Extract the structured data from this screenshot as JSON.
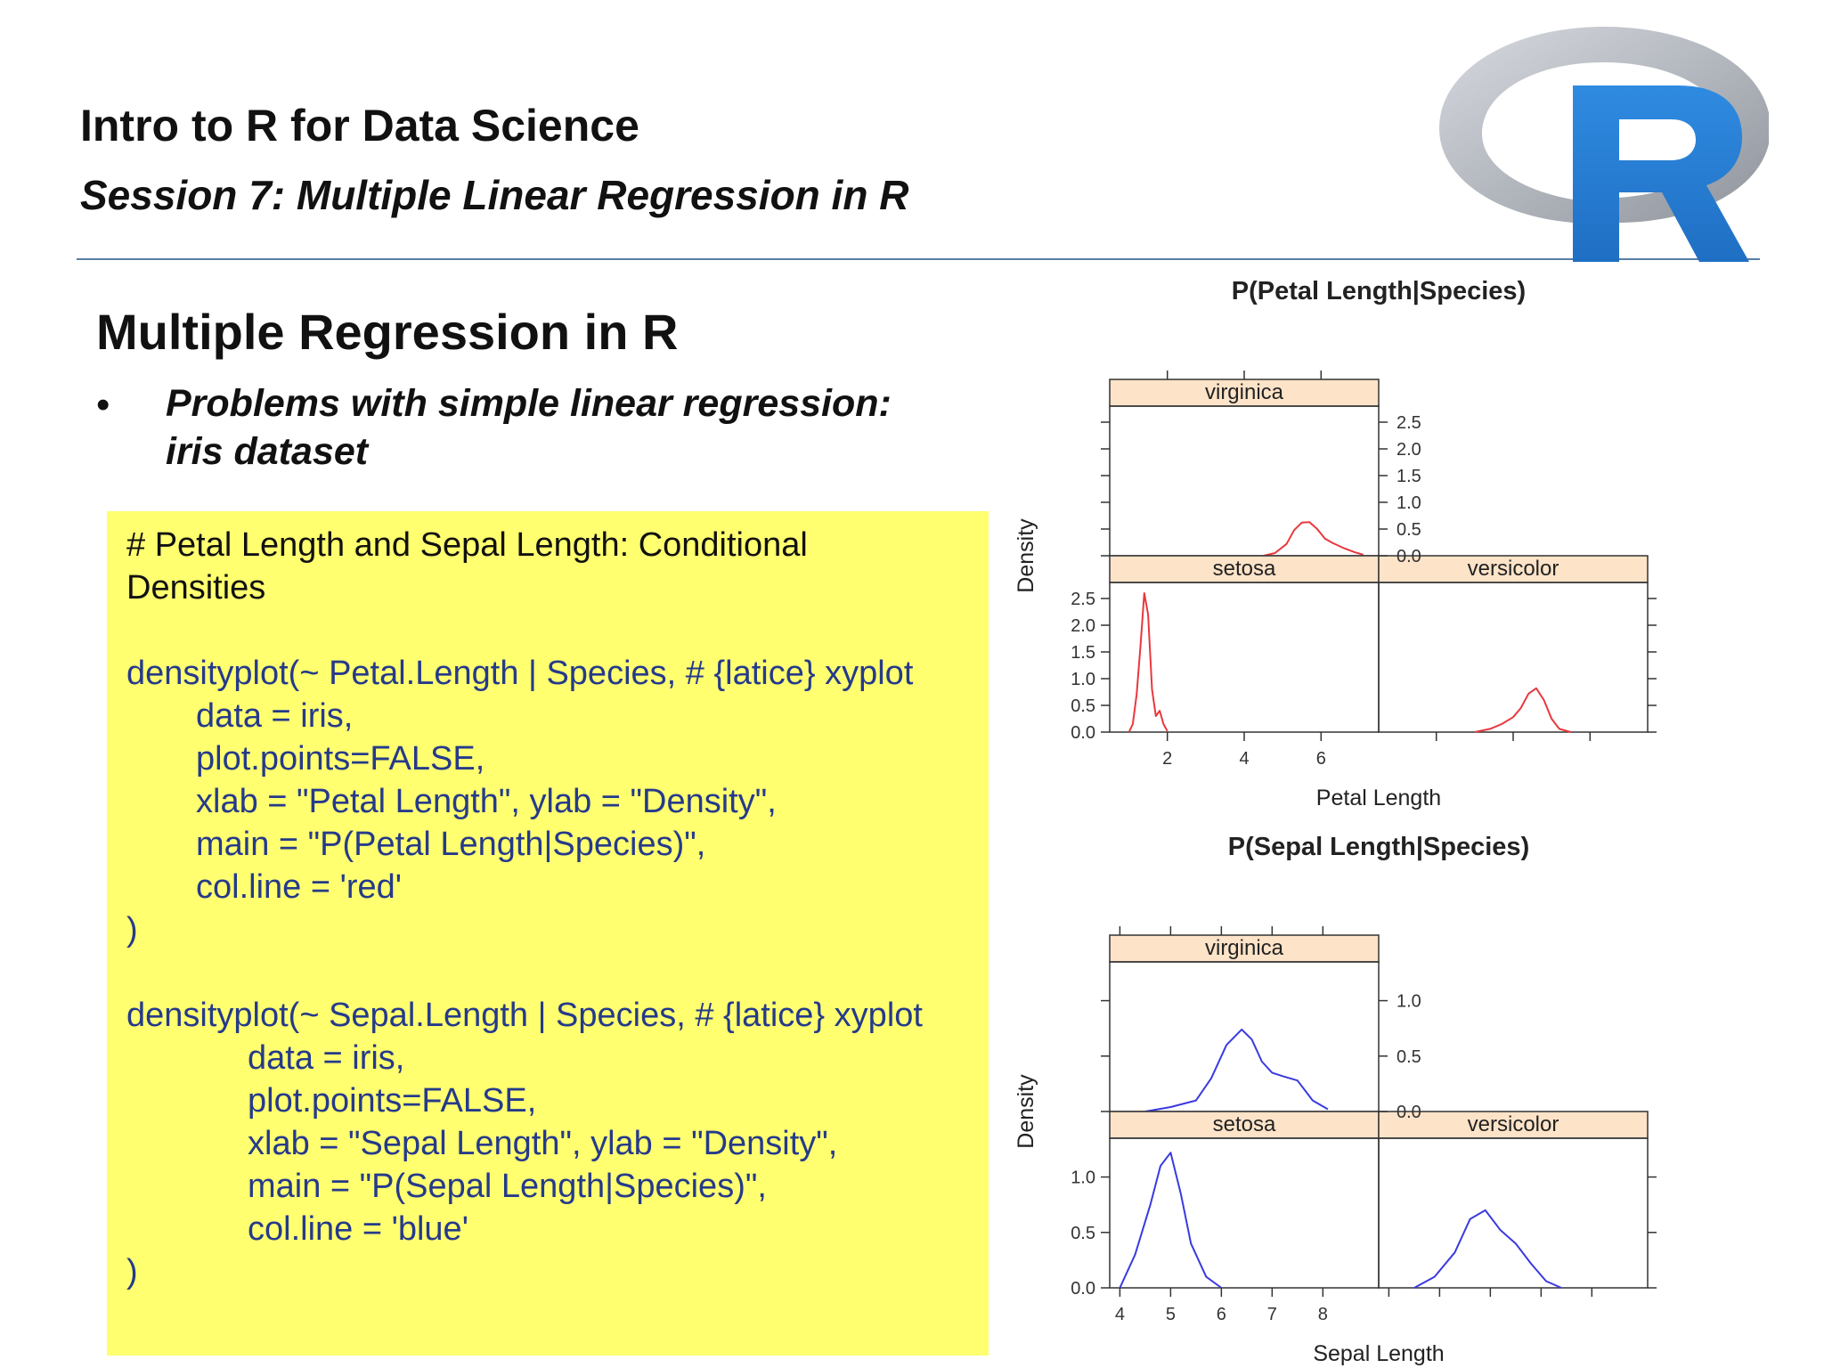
{
  "header": {
    "course_title": "Intro to R for Data Science",
    "session_title": "Session 7: Multiple Linear Regression in R"
  },
  "logo": {
    "name": "r-logo",
    "letter": "R",
    "colors": {
      "ring": "#b4b8c0",
      "letter": "#2a7fd6"
    }
  },
  "slide": {
    "heading": "Multiple Regression in R",
    "bullet_marker": "•",
    "bullet_text_line1": "Problems with simple linear regression:",
    "bullet_text_line2": "iris dataset"
  },
  "code_box": {
    "background": "#ffff70",
    "lines": [
      "# Petal Length and Sepal Length: Conditional",
      "Densities",
      "",
      "densityplot(~ Petal.Length | Species, # {latice} xyplot",
      "data = iris,",
      "plot.points=FALSE,",
      "xlab = \"Petal Length\", ylab = \"Density\",",
      "main = \"P(Petal Length|Species)\",",
      "col.line = 'red'",
      ")",
      "",
      "densityplot(~ Sepal.Length | Species, # {latice} xyplot",
      "data = iris,",
      "plot.points=FALSE,",
      "xlab = \"Sepal Length\", ylab = \"Density\",",
      "main = \"P(Sepal Length|Species)\",",
      "col.line = 'blue'",
      ")"
    ]
  },
  "chart_data": [
    {
      "type": "line",
      "title": "P(Petal Length|Species)",
      "xlabel": "Petal Length",
      "ylabel": "Density",
      "xlim": [
        0.5,
        7.5
      ],
      "ylim": [
        0,
        2.8
      ],
      "x_ticks": [
        2,
        4,
        6
      ],
      "y_ticks": [
        0.0,
        0.5,
        1.0,
        1.5,
        2.0,
        2.5
      ],
      "y_tick_labels": [
        "0.0",
        "0.5",
        "1.0",
        "1.5",
        "2.0",
        "2.5"
      ],
      "line_color": "#e8383d",
      "strip_color": "#fde3c8",
      "panels": [
        {
          "name": "virginica",
          "x": [
            4.5,
            4.8,
            5.1,
            5.3,
            5.5,
            5.7,
            5.9,
            6.1,
            6.3,
            6.6,
            6.9,
            7.1
          ],
          "y": [
            0.0,
            0.05,
            0.22,
            0.48,
            0.62,
            0.63,
            0.5,
            0.32,
            0.24,
            0.14,
            0.06,
            0.02
          ]
        },
        {
          "name": "setosa",
          "x": [
            1.0,
            1.1,
            1.2,
            1.3,
            1.4,
            1.5,
            1.6,
            1.7,
            1.8,
            1.9,
            2.0
          ],
          "y": [
            0.0,
            0.15,
            0.7,
            1.6,
            2.6,
            2.2,
            0.8,
            0.3,
            0.4,
            0.15,
            0.02
          ]
        },
        {
          "name": "versicolor",
          "x": [
            3.0,
            3.4,
            3.7,
            4.0,
            4.2,
            4.4,
            4.6,
            4.8,
            5.0,
            5.2,
            5.5
          ],
          "y": [
            0.0,
            0.06,
            0.15,
            0.28,
            0.45,
            0.72,
            0.82,
            0.6,
            0.25,
            0.06,
            0.0
          ]
        }
      ]
    },
    {
      "type": "line",
      "title": "P(Sepal Length|Species)",
      "xlabel": "Sepal Length",
      "ylabel": "Density",
      "xlim": [
        3.8,
        9.1
      ],
      "ylim": [
        0,
        1.35
      ],
      "x_ticks": [
        4,
        5,
        6,
        7,
        8
      ],
      "y_ticks": [
        0.0,
        0.5,
        1.0
      ],
      "y_tick_labels": [
        "0.0",
        "0.5",
        "1.0"
      ],
      "line_color": "#3a3ae0",
      "strip_color": "#fde3c8",
      "panels": [
        {
          "name": "virginica",
          "x": [
            4.5,
            5.0,
            5.5,
            5.8,
            6.1,
            6.4,
            6.6,
            6.8,
            7.0,
            7.2,
            7.5,
            7.8,
            8.1
          ],
          "y": [
            0.0,
            0.04,
            0.1,
            0.3,
            0.6,
            0.74,
            0.65,
            0.45,
            0.35,
            0.32,
            0.28,
            0.1,
            0.02
          ]
        },
        {
          "name": "setosa",
          "x": [
            4.0,
            4.3,
            4.6,
            4.8,
            5.0,
            5.2,
            5.4,
            5.7,
            6.0
          ],
          "y": [
            0.0,
            0.3,
            0.75,
            1.1,
            1.22,
            0.85,
            0.4,
            0.1,
            0.0
          ]
        },
        {
          "name": "versicolor",
          "x": [
            4.5,
            4.9,
            5.3,
            5.6,
            5.9,
            6.2,
            6.5,
            6.8,
            7.1,
            7.4
          ],
          "y": [
            0.0,
            0.1,
            0.32,
            0.62,
            0.7,
            0.52,
            0.4,
            0.22,
            0.06,
            0.0
          ]
        }
      ]
    }
  ]
}
